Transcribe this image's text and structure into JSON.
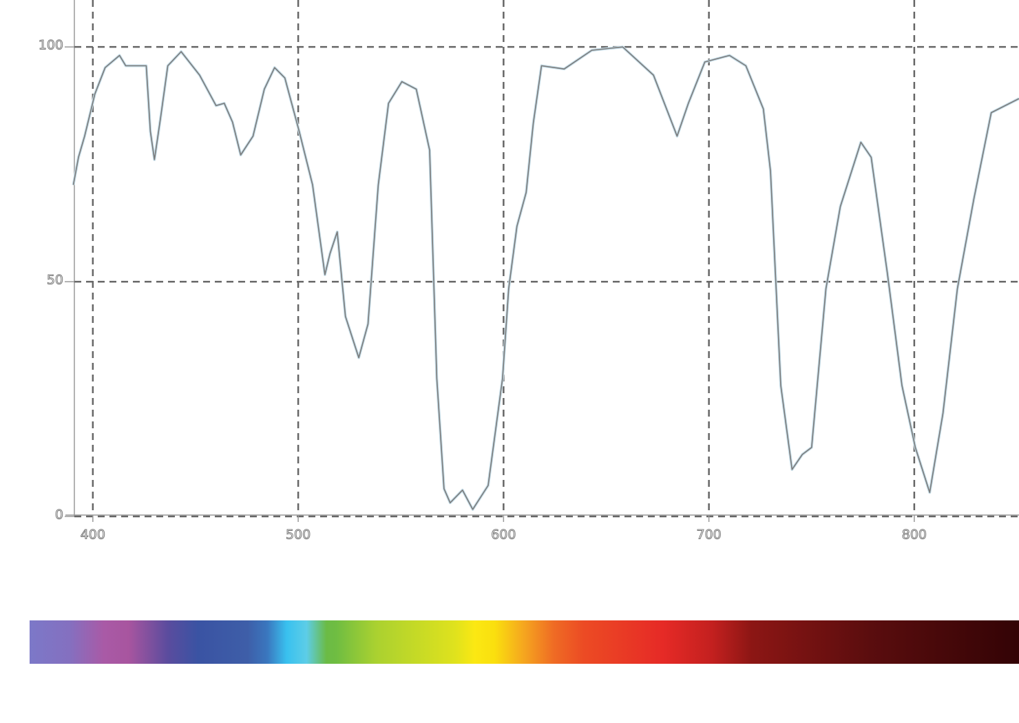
{
  "chart_data": {
    "type": "line",
    "x": [
      390.5,
      393,
      396,
      401,
      406,
      413,
      416,
      426,
      428,
      430,
      433,
      436.5,
      443,
      452,
      460,
      464,
      468,
      472,
      478,
      483.5,
      488.5,
      493.5,
      500.5,
      507,
      513,
      515.5,
      519,
      523,
      529.5,
      534,
      539,
      544,
      550.5,
      557.5,
      564,
      567.5,
      571,
      574,
      580,
      585,
      592.5,
      599.5,
      602.5,
      606.5,
      611,
      614.5,
      618.5,
      629.5,
      643,
      658,
      673,
      684.5,
      690,
      698,
      710,
      718,
      726.5,
      730,
      735,
      740.5,
      745.5,
      750,
      757,
      764,
      774,
      779,
      787,
      794,
      800.5,
      807.5,
      814,
      821,
      829,
      837.5,
      851
    ],
    "series": [
      {
        "color": "#7a7a7a",
        "values": [
          70.6,
          76.5,
          81,
          90,
          95.6,
          98.2,
          96,
          96,
          82,
          76,
          85,
          96,
          99,
          94,
          87.5,
          88,
          84,
          77,
          81,
          91,
          95.6,
          93.4,
          82,
          70.6,
          51.5,
          56,
          60.6,
          42.6,
          33.8,
          41,
          70.6,
          88,
          92.6,
          91,
          78,
          29.4,
          5.9,
          2.9,
          5.6,
          1.5,
          6.6,
          29.4,
          48.5,
          61.8,
          69,
          83.8,
          96,
          95.3,
          99.3,
          100,
          94,
          81,
          88,
          96.8,
          98.2,
          96,
          86.8,
          73.5,
          27.9,
          10,
          13.2,
          14.7,
          48.5,
          66,
          79.7,
          76.5,
          51.5,
          27.9,
          14.7,
          5.1,
          22,
          48.5,
          67.6,
          86,
          89
        ]
      }
    ],
    "xlim": [
      391,
      851
    ],
    "ylim": [
      0,
      110
    ],
    "xticks": [
      400,
      500,
      600,
      700,
      800
    ],
    "yticks": [
      0,
      50,
      100
    ],
    "grid": true
  }
}
